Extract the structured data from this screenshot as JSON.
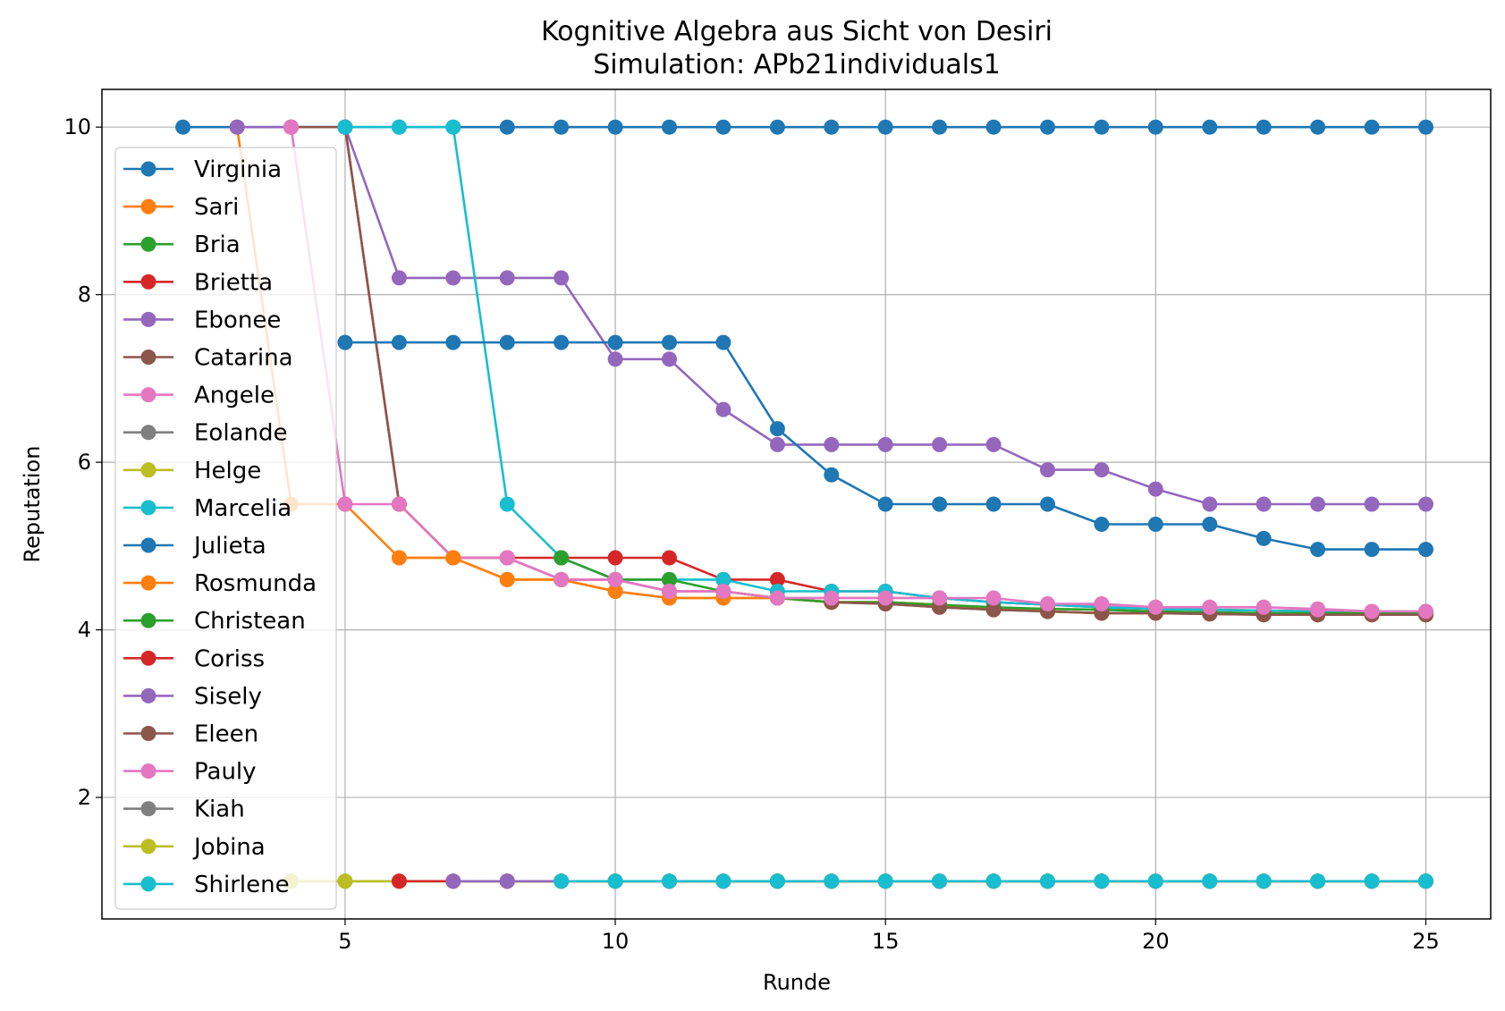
{
  "chart_data": {
    "type": "line",
    "title": "Kognitive Algebra aus Sicht von Desiri",
    "subtitle": "Simulation: APb21individuals1",
    "xlabel": "Runde",
    "ylabel": "Reputation",
    "xlim": [
      0.5,
      26.2
    ],
    "ylim": [
      0.55,
      10.45
    ],
    "xticks": [
      5,
      10,
      15,
      20,
      25
    ],
    "yticks": [
      2,
      4,
      6,
      8,
      10
    ],
    "grid": true,
    "legend_position": "upper-left",
    "series": [
      {
        "name": "Virginia",
        "color": "#1f77b4",
        "x": [
          2,
          3,
          4,
          5,
          6,
          7,
          8,
          9,
          10,
          11,
          12,
          13,
          14,
          15,
          16,
          17,
          18,
          19,
          20,
          21,
          22,
          23,
          24,
          25
        ],
        "y": [
          10,
          10,
          10,
          10,
          10,
          10,
          10,
          10,
          10,
          10,
          10,
          10,
          10,
          10,
          10,
          10,
          10,
          10,
          10,
          10,
          10,
          10,
          10,
          10
        ]
      },
      {
        "name": "Sari",
        "color": "#ff7f0e",
        "x": [
          3,
          4,
          5,
          6,
          7,
          8,
          9,
          10,
          11,
          12,
          13,
          14,
          15,
          16,
          17,
          18,
          19,
          20,
          21,
          22,
          23,
          24,
          25
        ],
        "y": [
          10,
          5.5,
          5.5,
          4.86,
          4.86,
          4.6,
          4.6,
          4.46,
          4.38,
          4.38,
          4.38,
          4.33,
          4.33,
          4.3,
          4.25,
          4.22,
          4.2,
          4.2,
          4.2,
          4.19,
          4.18,
          4.18,
          4.18
        ]
      },
      {
        "name": "Bria",
        "color": "#2ca02c",
        "x": [
          4,
          5,
          6,
          7,
          8,
          9,
          10,
          11,
          12,
          13,
          14,
          15,
          16,
          17,
          18,
          19,
          20,
          21,
          22,
          23,
          24,
          25
        ],
        "y": [
          1,
          1,
          1,
          1,
          1,
          1,
          1,
          1,
          1,
          1,
          1,
          1,
          1,
          1,
          1,
          1,
          1,
          1,
          1,
          1,
          1,
          1
        ]
      },
      {
        "name": "Brietta",
        "color": "#d62728",
        "x": [
          5,
          6,
          7,
          8,
          9,
          10,
          11,
          12,
          13,
          14,
          15,
          16,
          17,
          18,
          19,
          20,
          21,
          22,
          23,
          24,
          25
        ],
        "y": [
          10,
          5.5,
          4.86,
          4.86,
          4.86,
          4.86,
          4.86,
          4.6,
          4.6,
          4.46,
          4.46,
          4.38,
          4.33,
          4.3,
          4.27,
          4.25,
          4.24,
          4.23,
          4.22,
          4.21,
          4.21
        ]
      },
      {
        "name": "Ebonee",
        "color": "#9467bd",
        "x": [
          3,
          4,
          5,
          6,
          7,
          8,
          9,
          10,
          11,
          12,
          13,
          14,
          15,
          16,
          17,
          18,
          19,
          20,
          21,
          22,
          23,
          24,
          25
        ],
        "y": [
          10,
          10,
          10,
          8.2,
          8.2,
          8.2,
          8.2,
          7.23,
          7.23,
          6.63,
          6.21,
          6.21,
          6.21,
          6.21,
          6.21,
          5.91,
          5.91,
          5.68,
          5.5,
          5.5,
          5.5,
          5.5,
          5.5
        ]
      },
      {
        "name": "Catarina",
        "color": "#8c564b",
        "x": [
          4,
          5,
          6,
          7,
          8,
          9,
          10,
          11,
          12,
          13,
          14,
          15,
          16,
          17,
          18,
          19,
          20,
          21,
          22,
          23,
          24,
          25
        ],
        "y": [
          10,
          10,
          5.5,
          4.86,
          4.86,
          4.6,
          4.6,
          4.46,
          4.46,
          4.38,
          4.33,
          4.31,
          4.27,
          4.24,
          4.22,
          4.2,
          4.2,
          4.19,
          4.18,
          4.18,
          4.18,
          4.18
        ]
      },
      {
        "name": "Angele",
        "color": "#e377c2",
        "x": [
          4,
          5,
          6,
          7,
          8,
          9,
          10,
          11,
          12,
          13,
          14,
          15,
          16,
          17,
          18,
          19,
          20,
          21,
          22,
          23,
          24,
          25
        ],
        "y": [
          10,
          5.5,
          5.5,
          4.86,
          4.86,
          4.6,
          4.6,
          4.46,
          4.46,
          4.38,
          4.38,
          4.38,
          4.38,
          4.33,
          4.3,
          4.3,
          4.27,
          4.27,
          4.27,
          4.25,
          4.22,
          4.22
        ]
      },
      {
        "name": "Eolande",
        "color": "#7f7f7f",
        "x": [
          8,
          9,
          10,
          11,
          12,
          13,
          14,
          15,
          16,
          17,
          18,
          19,
          20,
          21,
          22,
          23,
          24,
          25
        ],
        "y": [
          1,
          1,
          1,
          1,
          1,
          1,
          1,
          1,
          1,
          1,
          1,
          1,
          1,
          1,
          1,
          1,
          1,
          1
        ]
      },
      {
        "name": "Helge",
        "color": "#bcbd22",
        "x": [
          4,
          5,
          6,
          7,
          8,
          9,
          10,
          11,
          12,
          13,
          14,
          15,
          16,
          17,
          18,
          19,
          20,
          21,
          22,
          23,
          24,
          25
        ],
        "y": [
          1,
          1,
          1,
          1,
          1,
          1,
          1,
          1,
          1,
          1,
          1,
          1,
          1,
          1,
          1,
          1,
          1,
          1,
          1,
          1,
          1,
          1
        ]
      },
      {
        "name": "Marcelia",
        "color": "#17becf",
        "x": [
          5,
          6,
          7,
          8,
          9,
          10,
          11,
          12,
          13,
          14,
          15,
          16,
          17,
          18,
          19,
          20,
          21,
          22,
          23,
          24,
          25
        ],
        "y": [
          10,
          10,
          10,
          5.5,
          4.86,
          4.6,
          4.6,
          4.6,
          4.46,
          4.46,
          4.46,
          4.38,
          4.33,
          4.3,
          4.27,
          4.25,
          4.24,
          4.23,
          4.22,
          4.21,
          4.21
        ]
      },
      {
        "name": "Julieta",
        "color": "#1f77b4",
        "x": [
          5,
          6,
          7,
          8,
          9,
          10,
          11,
          12,
          13,
          14,
          15,
          16,
          17,
          18,
          19,
          20,
          21,
          22,
          23,
          24,
          25
        ],
        "y": [
          7.43,
          7.43,
          7.43,
          7.43,
          7.43,
          7.43,
          7.43,
          7.43,
          6.4,
          5.85,
          5.5,
          5.5,
          5.5,
          5.5,
          5.26,
          5.26,
          5.26,
          5.09,
          4.96,
          4.96,
          4.96
        ]
      },
      {
        "name": "Rosmunda",
        "color": "#ff7f0e",
        "x": [
          6,
          7,
          8,
          9,
          10,
          11,
          12,
          13,
          14,
          15,
          16,
          17,
          18,
          19,
          20,
          21,
          22,
          23,
          24,
          25
        ],
        "y": [
          4.86,
          4.86,
          4.6,
          4.6,
          4.46,
          4.38,
          4.38,
          4.38,
          4.33,
          4.33,
          4.3,
          4.25,
          4.22,
          4.2,
          4.2,
          4.2,
          4.19,
          4.18,
          4.18,
          4.18
        ]
      },
      {
        "name": "Christean",
        "color": "#2ca02c",
        "x": [
          9,
          10,
          11,
          12,
          13,
          14,
          15,
          16,
          17,
          18,
          19,
          20,
          21,
          22,
          23,
          24,
          25
        ],
        "y": [
          4.86,
          4.6,
          4.6,
          4.46,
          4.38,
          4.33,
          4.33,
          4.3,
          4.27,
          4.25,
          4.24,
          4.22,
          4.21,
          4.2,
          4.2,
          4.2,
          4.2
        ]
      },
      {
        "name": "Coriss",
        "color": "#d62728",
        "x": [
          6,
          7,
          8,
          9,
          10,
          11,
          12,
          13,
          14,
          15,
          16,
          17,
          18,
          19,
          20,
          21,
          22,
          23,
          24,
          25
        ],
        "y": [
          1,
          1,
          1,
          1,
          1,
          1,
          1,
          1,
          1,
          1,
          1,
          1,
          1,
          1,
          1,
          1,
          1,
          1,
          1,
          1
        ]
      },
      {
        "name": "Sisely",
        "color": "#9467bd",
        "x": [
          7,
          8,
          9,
          10,
          11,
          12,
          13,
          14,
          15,
          16,
          17,
          18,
          19,
          20,
          21,
          22,
          23,
          24,
          25
        ],
        "y": [
          1,
          1,
          1,
          1,
          1,
          1,
          1,
          1,
          1,
          1,
          1,
          1,
          1,
          1,
          1,
          1,
          1,
          1,
          1
        ]
      },
      {
        "name": "Eleen",
        "color": "#8c564b",
        "x": [
          14,
          15,
          16,
          17,
          18,
          19,
          20,
          21,
          22,
          23,
          24,
          25
        ],
        "y": [
          4.33,
          4.31,
          4.27,
          4.24,
          4.22,
          4.2,
          4.2,
          4.19,
          4.18,
          4.18,
          4.18,
          4.18
        ]
      },
      {
        "name": "Pauly",
        "color": "#e377c2",
        "x": [
          8,
          9,
          10,
          11,
          12,
          13,
          14,
          15,
          16,
          17,
          18,
          19,
          20,
          21,
          22,
          23,
          24,
          25
        ],
        "y": [
          4.86,
          4.6,
          4.6,
          4.46,
          4.46,
          4.38,
          4.38,
          4.38,
          4.38,
          4.38,
          4.31,
          4.31,
          4.27,
          4.27,
          4.27,
          4.24,
          4.22,
          4.22
        ]
      },
      {
        "name": "Kiah",
        "color": "#7f7f7f",
        "x": [
          9,
          10,
          11,
          12,
          13,
          14,
          15,
          16,
          17,
          18,
          19,
          20,
          21,
          22,
          23,
          24,
          25
        ],
        "y": [
          1,
          1,
          1,
          1,
          1,
          1,
          1,
          1,
          1,
          1,
          1,
          1,
          1,
          1,
          1,
          1,
          1
        ]
      },
      {
        "name": "Jobina",
        "color": "#bcbd22",
        "x": [
          9,
          10,
          11,
          12,
          13,
          14,
          15,
          16,
          17,
          18,
          19,
          20,
          21,
          22,
          23,
          24,
          25
        ],
        "y": [
          1,
          1,
          1,
          1,
          1,
          1,
          1,
          1,
          1,
          1,
          1,
          1,
          1,
          1,
          1,
          1,
          1
        ]
      },
      {
        "name": "Shirlene",
        "color": "#17becf",
        "x": [
          9,
          10,
          11,
          12,
          13,
          14,
          15,
          16,
          17,
          18,
          19,
          20,
          21,
          22,
          23,
          24,
          25
        ],
        "y": [
          1,
          1,
          1,
          1,
          1,
          1,
          1,
          1,
          1,
          1,
          1,
          1,
          1,
          1,
          1,
          1,
          1
        ]
      }
    ]
  }
}
